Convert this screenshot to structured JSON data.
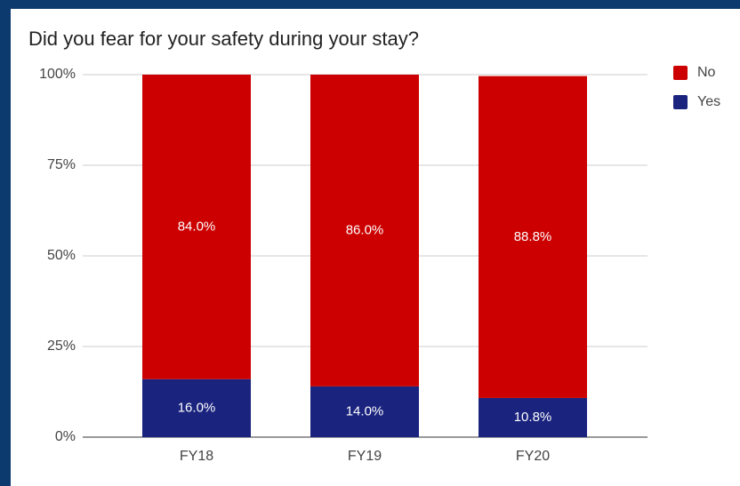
{
  "chart_data": {
    "type": "stacked_bar",
    "title": "Did you fear for your safety during your stay?",
    "categories": [
      "FY18",
      "FY19",
      "FY20"
    ],
    "series": [
      {
        "name": "Yes",
        "color": "#1a237e",
        "values": [
          16.0,
          14.0,
          10.8
        ],
        "value_labels": [
          "16.0%",
          "14.0%",
          "10.8%"
        ]
      },
      {
        "name": "No",
        "color": "#cc0000",
        "values": [
          84.0,
          86.0,
          88.8
        ],
        "value_labels": [
          "84.0%",
          "86.0%",
          "88.8%"
        ]
      }
    ],
    "ylim": [
      0,
      100
    ],
    "yticks": [
      {
        "value": 0,
        "label": "0%"
      },
      {
        "value": 25,
        "label": "25%"
      },
      {
        "value": 50,
        "label": "50%"
      },
      {
        "value": 75,
        "label": "75%"
      },
      {
        "value": 100,
        "label": "100%"
      }
    ],
    "grid": true,
    "legend": "right"
  }
}
